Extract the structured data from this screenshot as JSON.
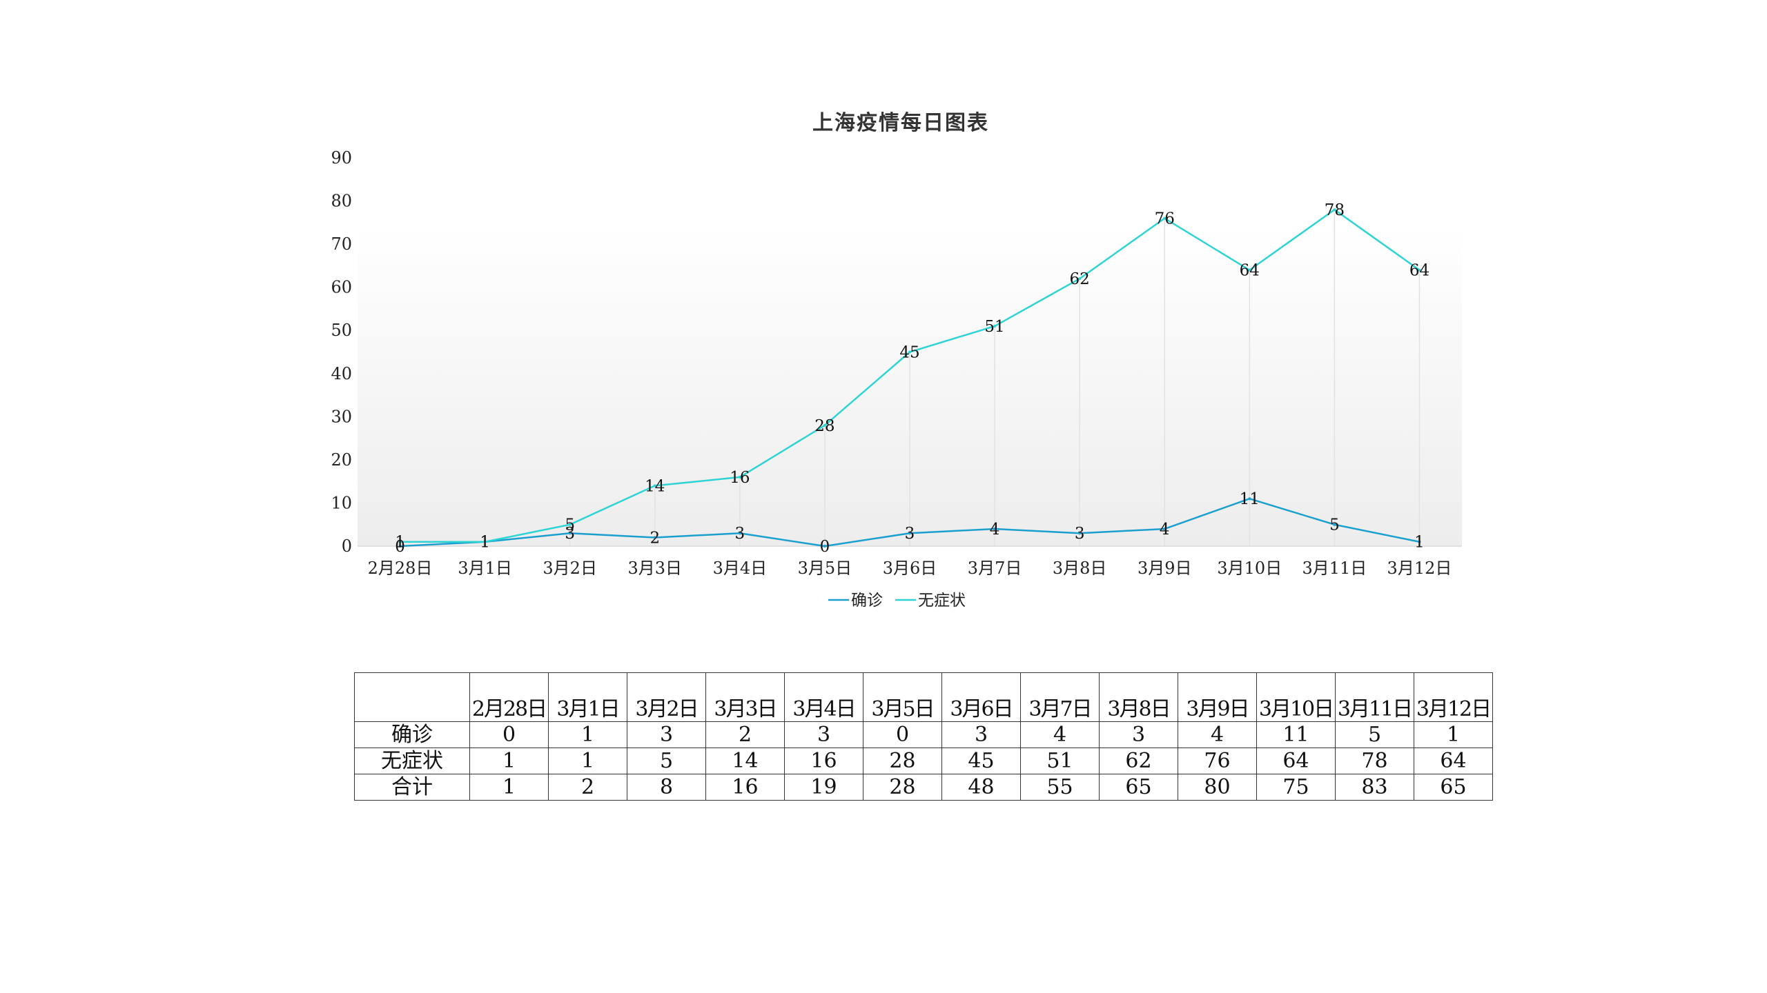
{
  "chart_data": {
    "type": "line",
    "title": "上海疫情每日图表",
    "categories": [
      "2月28日",
      "3月1日",
      "3月2日",
      "3月3日",
      "3月4日",
      "3月5日",
      "3月6日",
      "3月7日",
      "3月8日",
      "3月9日",
      "3月10日",
      "3月11日",
      "3月12日"
    ],
    "series": [
      {
        "name": "确诊",
        "values": [
          0,
          1,
          3,
          2,
          3,
          0,
          3,
          4,
          3,
          4,
          11,
          5,
          1
        ],
        "color": "#1b9fcf"
      },
      {
        "name": "无症状",
        "values": [
          1,
          1,
          5,
          14,
          16,
          28,
          45,
          51,
          62,
          76,
          64,
          78,
          64
        ],
        "color": "#2ed3d3"
      }
    ],
    "ylim": [
      0,
      90
    ],
    "yticks": [
      0,
      10,
      20,
      30,
      40,
      50,
      60,
      70,
      80,
      90
    ],
    "grid": "vertical drop lines",
    "legend": "bottom-center",
    "data_labels": true,
    "plot_background": "gradient white to light gray"
  },
  "table": {
    "corner": "",
    "headers": [
      "2月28日",
      "3月1日",
      "3月2日",
      "3月3日",
      "3月4日",
      "3月5日",
      "3月6日",
      "3月7日",
      "3月8日",
      "3月9日",
      "3月10日",
      "3月11日",
      "3月12日"
    ],
    "rows": [
      {
        "label": "确诊",
        "values": [
          "0",
          "1",
          "3",
          "2",
          "3",
          "0",
          "3",
          "4",
          "3",
          "4",
          "11",
          "5",
          "1"
        ]
      },
      {
        "label": "无症状",
        "values": [
          "1",
          "1",
          "5",
          "14",
          "16",
          "28",
          "45",
          "51",
          "62",
          "76",
          "64",
          "78",
          "64"
        ]
      },
      {
        "label": "合计",
        "values": [
          "1",
          "2",
          "8",
          "16",
          "19",
          "28",
          "48",
          "55",
          "65",
          "80",
          "75",
          "83",
          "65"
        ]
      }
    ]
  }
}
